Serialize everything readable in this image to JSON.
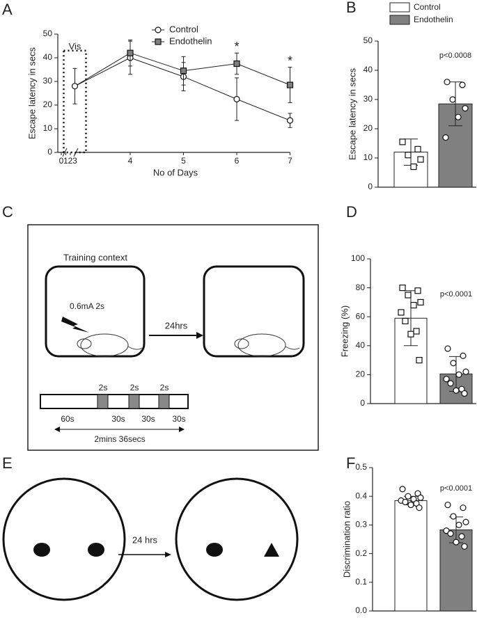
{
  "chart_data": [
    {
      "type": "line",
      "panel_label": "A",
      "xlabel": "No of Days",
      "ylabel": "Escape latency in secs",
      "xlim": [
        0,
        7
      ],
      "xticks": [
        0,
        1,
        2,
        3,
        4,
        5,
        6,
        7
      ],
      "ylim": [
        0,
        50
      ],
      "yticks": [
        0,
        10,
        20,
        30,
        40,
        50
      ],
      "vis": {
        "label": "Vis",
        "x": 3,
        "value": 28,
        "error": 7.5
      },
      "series": [
        {
          "name": "Control",
          "color": "#ffffff",
          "marker": "circle",
          "x": [
            4,
            5,
            6,
            7
          ],
          "values": [
            40,
            32,
            22.5,
            13.5
          ],
          "errors": [
            7,
            6,
            9,
            3
          ]
        },
        {
          "name": "Endothelin",
          "color": "#7f7f7f",
          "marker": "square",
          "x": [
            4,
            5,
            6,
            7
          ],
          "values": [
            42,
            34.5,
            37.5,
            28.5
          ],
          "errors": [
            5.5,
            6,
            4.5,
            7.5
          ]
        }
      ],
      "significance": [
        {
          "x": 6,
          "label": "*"
        },
        {
          "x": 7,
          "label": "*"
        }
      ]
    },
    {
      "type": "bar",
      "panel_label": "B",
      "ylabel": "Escape latency in secs",
      "ylim": [
        0,
        50
      ],
      "yticks": [
        0,
        10,
        20,
        30,
        40,
        50
      ],
      "annotation": "p<0.0008",
      "series": [
        {
          "name": "Control",
          "color": "#ffffff",
          "marker": "square",
          "value": 12,
          "error": 4.5,
          "points": [
            15.5,
            13,
            11,
            9.5,
            7
          ]
        },
        {
          "name": "Endothelin",
          "color": "#808080",
          "marker": "circle",
          "value": 28.5,
          "error": 7.5,
          "points": [
            36,
            35,
            30,
            27,
            24,
            17
          ]
        }
      ]
    },
    {
      "type": "bar",
      "panel_label": "D",
      "ylabel": "Freezing (%)",
      "ylim": [
        0,
        100
      ],
      "yticks": [
        0,
        20,
        40,
        60,
        80,
        100
      ],
      "annotation": "p<0.0001",
      "series": [
        {
          "color": "#ffffff",
          "marker": "square",
          "value": 59,
          "error": 19,
          "points": [
            80,
            78,
            75,
            70,
            68,
            63,
            57,
            50,
            48,
            30
          ]
        },
        {
          "color": "#808080",
          "marker": "circle",
          "value": 20.5,
          "error": 12,
          "points": [
            38,
            33,
            28,
            22,
            20,
            17,
            14,
            10,
            9,
            7
          ]
        }
      ]
    },
    {
      "type": "bar",
      "panel_label": "F",
      "ylabel": "Discrimination ratio",
      "ylim": [
        0,
        0.5
      ],
      "yticks": [
        {
          "value": 0,
          "label": "0.0"
        },
        0.1,
        0.2,
        0.3,
        0.4,
        0.5
      ],
      "annotation": "p<0.0001",
      "series": [
        {
          "color": "#ffffff",
          "marker": "circle",
          "value": 0.385,
          "error": 0.015,
          "points": [
            0.425,
            0.41,
            0.4,
            0.395,
            0.39,
            0.385,
            0.38,
            0.375,
            0.37,
            0.36
          ]
        },
        {
          "color": "#808080",
          "marker": "circle",
          "value": 0.283,
          "error": 0.045,
          "points": [
            0.37,
            0.36,
            0.33,
            0.31,
            0.3,
            0.28,
            0.27,
            0.26,
            0.24,
            0.225
          ]
        }
      ]
    }
  ],
  "diagram_c": {
    "panel_label": "C",
    "context": "Training context",
    "shock": "0.6mA 2s",
    "delay": "24hrs",
    "shock_durations": [
      "2s",
      "2s",
      "2s"
    ],
    "intervals": [
      "60s",
      "30s",
      "30s",
      "30s"
    ],
    "total": "2mins 36secs"
  },
  "diagram_e": {
    "panel_label": "E",
    "delay": "24 hrs"
  }
}
